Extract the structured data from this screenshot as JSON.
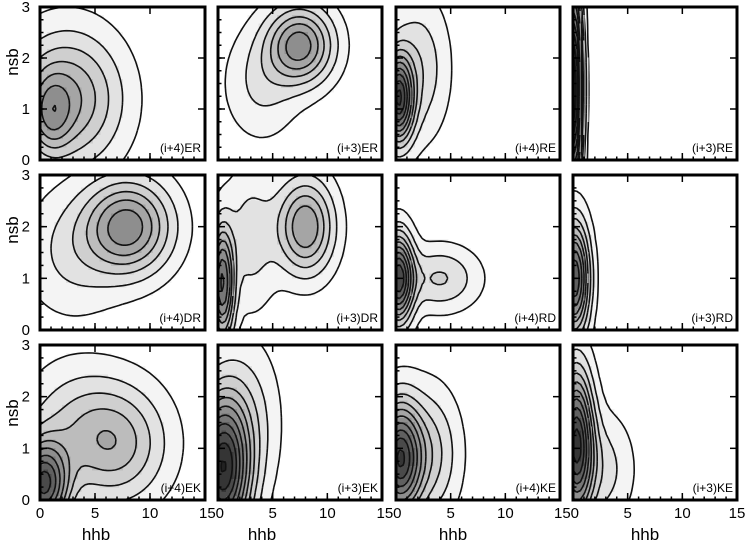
{
  "chart_data": {
    "type": "contour",
    "layout": "3x4 grid of panels, shared axes",
    "xlabel": "hhb",
    "ylabel": "nsb",
    "xlim": [
      0,
      15
    ],
    "ylim": [
      0,
      3
    ],
    "x_ticks": [
      0,
      5,
      10,
      15
    ],
    "y_ticks": [
      0,
      1,
      2,
      3
    ],
    "x_tick_labels_first": [
      "0",
      "5",
      "10"
    ],
    "x_tick_labels_middle": [
      "5",
      "10"
    ],
    "x_tick_labels_last": [
      "5",
      "10",
      "15"
    ],
    "x_tick_label_joint": "150",
    "y_tick_labels_top_row": [
      "0",
      "1",
      "2",
      "3"
    ],
    "y_tick_labels_other_rows": [
      "0",
      "1",
      "2",
      "3"
    ],
    "fill_colors": [
      "#f4f4f4",
      "#e2e2e2",
      "#cfcfcf",
      "#bcbcbc",
      "#a5a5a5",
      "#8e8e8e",
      "#777777",
      "#606060",
      "#4a4a4a",
      "#353535",
      "#222222"
    ],
    "panels": [
      {
        "label": "(i+4)ER",
        "row": 0,
        "col": 0,
        "peaks": [
          {
            "x": 2.5,
            "y": 1.2,
            "sx": 3.2,
            "sy": 0.85,
            "a": 0.75
          },
          {
            "x": 1.0,
            "y": 0.9,
            "sx": 1.2,
            "sy": 0.5,
            "a": 0.45
          }
        ]
      },
      {
        "label": "(i+3)ER",
        "row": 0,
        "col": 1,
        "peaks": [
          {
            "x": 7.5,
            "y": 2.25,
            "sx": 2.0,
            "sy": 0.5,
            "a": 1.0
          },
          {
            "x": 4.0,
            "y": 1.5,
            "sx": 2.2,
            "sy": 0.7,
            "a": 0.25
          }
        ]
      },
      {
        "label": "(i+4)RE",
        "row": 0,
        "col": 2,
        "peaks": [
          {
            "x": 0.2,
            "y": 1.2,
            "sx": 0.9,
            "sy": 0.55,
            "a": 1.6
          },
          {
            "x": 2.0,
            "y": 1.8,
            "sx": 1.8,
            "sy": 0.9,
            "a": 0.35
          }
        ]
      },
      {
        "label": "(i+3)RE",
        "row": 0,
        "col": 3,
        "peaks": [
          {
            "x": 0.0,
            "y": 1.4,
            "sx": 0.55,
            "sy": 1.3,
            "a": 2.2
          }
        ]
      },
      {
        "label": "(i+4)DR",
        "row": 1,
        "col": 0,
        "peaks": [
          {
            "x": 8.0,
            "y": 2.0,
            "sx": 2.6,
            "sy": 0.6,
            "a": 1.0
          },
          {
            "x": 3.0,
            "y": 1.5,
            "sx": 3.0,
            "sy": 0.8,
            "a": 0.25
          }
        ]
      },
      {
        "label": "(i+3)DR",
        "row": 1,
        "col": 1,
        "peaks": [
          {
            "x": 8.0,
            "y": 2.0,
            "sx": 1.7,
            "sy": 0.6,
            "a": 0.9
          },
          {
            "x": 0.4,
            "y": 0.9,
            "sx": 0.7,
            "sy": 0.7,
            "a": 1.3
          },
          {
            "x": 3.0,
            "y": 1.8,
            "sx": 1.6,
            "sy": 0.9,
            "a": 0.3
          }
        ]
      },
      {
        "label": "(i+4)RD",
        "row": 1,
        "col": 2,
        "peaks": [
          {
            "x": 0.2,
            "y": 1.0,
            "sx": 0.9,
            "sy": 0.55,
            "a": 1.6
          },
          {
            "x": 4.0,
            "y": 1.0,
            "sx": 2.3,
            "sy": 0.4,
            "a": 0.4
          }
        ]
      },
      {
        "label": "(i+3)RD",
        "row": 1,
        "col": 3,
        "peaks": [
          {
            "x": 0.1,
            "y": 1.0,
            "sx": 0.9,
            "sy": 0.7,
            "a": 1.5
          }
        ]
      },
      {
        "label": "(i+4)EK",
        "row": 2,
        "col": 0,
        "peaks": [
          {
            "x": 0.3,
            "y": 0.3,
            "sx": 1.5,
            "sy": 0.55,
            "a": 1.5
          },
          {
            "x": 7.0,
            "y": 1.1,
            "sx": 3.0,
            "sy": 0.75,
            "a": 0.6
          },
          {
            "x": 3.0,
            "y": 1.4,
            "sx": 3.0,
            "sy": 0.8,
            "a": 0.3
          }
        ]
      },
      {
        "label": "(i+3)EK",
        "row": 2,
        "col": 1,
        "peaks": [
          {
            "x": 0.4,
            "y": 0.6,
            "sx": 1.6,
            "sy": 0.9,
            "a": 1.8
          },
          {
            "x": 2.5,
            "y": 1.5,
            "sx": 2.0,
            "sy": 1.0,
            "a": 0.3
          }
        ]
      },
      {
        "label": "(i+4)KE",
        "row": 2,
        "col": 2,
        "peaks": [
          {
            "x": 0.3,
            "y": 0.8,
            "sx": 1.3,
            "sy": 0.7,
            "a": 1.6
          },
          {
            "x": 3.0,
            "y": 0.9,
            "sx": 1.8,
            "sy": 0.8,
            "a": 0.45
          }
        ]
      },
      {
        "label": "(i+3)KE",
        "row": 2,
        "col": 3,
        "peaks": [
          {
            "x": 0.3,
            "y": 1.1,
            "sx": 1.0,
            "sy": 0.9,
            "a": 1.7
          },
          {
            "x": 2.5,
            "y": 0.6,
            "sx": 1.9,
            "sy": 0.7,
            "a": 0.3
          }
        ]
      }
    ]
  }
}
